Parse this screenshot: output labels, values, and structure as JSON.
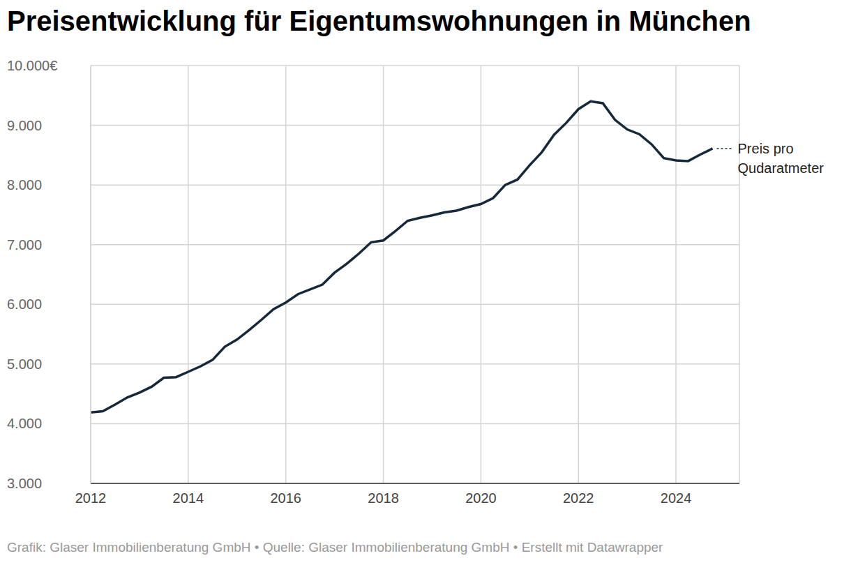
{
  "chart_data": {
    "type": "line",
    "title": "Preisentwicklung für Eigentumswohnungen in München",
    "source": "Grafik: Glaser Immobilienberatung GmbH • Quelle: Glaser Immobilienberatung GmbH • Erstellt mit Datawrapper",
    "x": [
      2012,
      2012.25,
      2012.5,
      2012.75,
      2013,
      2013.25,
      2013.5,
      2013.75,
      2014,
      2014.25,
      2014.5,
      2014.75,
      2015,
      2015.25,
      2015.5,
      2015.75,
      2016,
      2016.25,
      2016.5,
      2016.75,
      2017,
      2017.25,
      2017.5,
      2017.75,
      2018,
      2018.25,
      2018.5,
      2018.75,
      2019,
      2019.25,
      2019.5,
      2019.75,
      2020,
      2020.25,
      2020.5,
      2020.75,
      2021,
      2021.25,
      2021.5,
      2021.75,
      2022,
      2022.25,
      2022.5,
      2022.75,
      2023,
      2023.25,
      2023.5,
      2023.75,
      2024,
      2024.25,
      2024.5,
      2024.75
    ],
    "series": [
      {
        "name": "Preis pro Qudaratmeter",
        "color": "#15293a",
        "values": [
          4190,
          4210,
          4320,
          4440,
          4520,
          4620,
          4770,
          4780,
          4870,
          4960,
          5070,
          5290,
          5410,
          5570,
          5740,
          5920,
          6030,
          6170,
          6250,
          6330,
          6530,
          6680,
          6850,
          7040,
          7070,
          7230,
          7400,
          7450,
          7490,
          7540,
          7570,
          7630,
          7680,
          7780,
          8000,
          8090,
          8330,
          8550,
          8840,
          9040,
          9270,
          9400,
          9370,
          9090,
          8930,
          8850,
          8680,
          8450,
          8410,
          8400,
          8510,
          8610
        ]
      }
    ],
    "xlim": [
      2012,
      2025.3
    ],
    "xticks": [
      2012,
      2014,
      2016,
      2018,
      2020,
      2022,
      2024
    ],
    "ylim": [
      3000,
      10000
    ],
    "yticks": [
      {
        "value": 3000,
        "label": "3.000"
      },
      {
        "value": 4000,
        "label": "4.000"
      },
      {
        "value": 5000,
        "label": "5.000"
      },
      {
        "value": 6000,
        "label": "6.000"
      },
      {
        "value": 7000,
        "label": "7.000"
      },
      {
        "value": 8000,
        "label": "8.000"
      },
      {
        "value": 9000,
        "label": "9.000"
      },
      {
        "value": 10000,
        "label": "10.000€"
      }
    ],
    "grid": true
  }
}
